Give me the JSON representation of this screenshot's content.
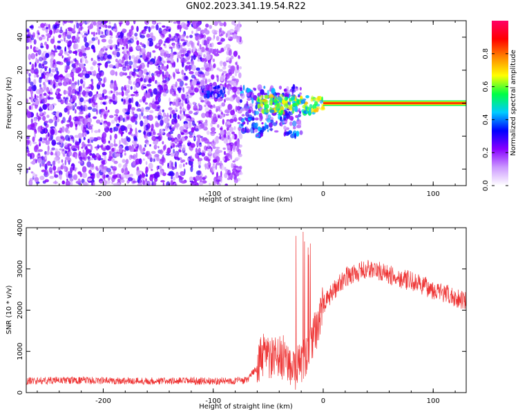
{
  "figure": {
    "title": "GN02.2023.341.19.54.R22"
  },
  "chart_data": [
    {
      "type": "heatmap",
      "title": "GN02.2023.341.19.54.R22",
      "xlabel": "Height of straight line (km)",
      "ylabel": "Frequency (Hz)",
      "xlim": [
        -270,
        130
      ],
      "ylim": [
        -50,
        50
      ],
      "xticks": [
        -200,
        -100,
        0,
        100
      ],
      "yticks": [
        -40,
        -20,
        0,
        20,
        40
      ],
      "grid": false,
      "description_regions": [
        {
          "x_range": [
            -270,
            -75
          ],
          "y_range": [
            -50,
            50
          ],
          "level": 0.1,
          "kind": "noise"
        },
        {
          "x_range": [
            -75,
            -20
          ],
          "y_range": [
            -20,
            10
          ],
          "level": 0.2,
          "kind": "scattered"
        },
        {
          "x_range": [
            -110,
            -90
          ],
          "y_range": [
            4,
            10
          ],
          "level": 0.15,
          "kind": "blob"
        },
        {
          "x_range": [
            -60,
            0
          ],
          "y_range": [
            -6,
            4
          ],
          "level": 0.5,
          "kind": "blob"
        },
        {
          "x_range": [
            0,
            130
          ],
          "y_range": [
            -1,
            1
          ],
          "level": 0.9,
          "kind": "line"
        }
      ],
      "colorbar": {
        "label": "Normalized spectral amplitude",
        "range": [
          0,
          1
        ],
        "ticks": [
          0.0,
          0.2,
          0.4,
          0.6,
          0.8
        ],
        "tick_labels": [
          "0.0",
          "0.2",
          "0.4",
          "0.6",
          "0.8"
        ],
        "colors": [
          "#ffffff",
          "#cc99ff",
          "#8800ff",
          "#0000ff",
          "#00ccff",
          "#00ff44",
          "#ffff00",
          "#ff8800",
          "#ff0000",
          "#ff0066"
        ]
      }
    },
    {
      "type": "line",
      "xlabel": "Height of straight line (km)",
      "ylabel": "SNR (10 * v/v)",
      "xlim": [
        -270,
        130
      ],
      "ylim": [
        0,
        4000
      ],
      "xticks": [
        -200,
        -100,
        0,
        100
      ],
      "yticks": [
        0,
        1000,
        2000,
        3000,
        4000
      ],
      "grid": false,
      "series": [
        {
          "color": "#ee3333",
          "x": [
            -270,
            -240,
            -200,
            -150,
            -100,
            -70,
            -60,
            -55,
            -45,
            -35,
            -25,
            -20,
            -15,
            -10,
            -5,
            0,
            10,
            20,
            30,
            40,
            50,
            60,
            80,
            100,
            120,
            130
          ],
          "y": [
            280,
            300,
            290,
            280,
            280,
            290,
            600,
            900,
            800,
            850,
            600,
            700,
            900,
            1200,
            1700,
            2100,
            2500,
            2800,
            2900,
            3000,
            2950,
            2850,
            2700,
            2500,
            2300,
            2250
          ]
        }
      ]
    }
  ]
}
